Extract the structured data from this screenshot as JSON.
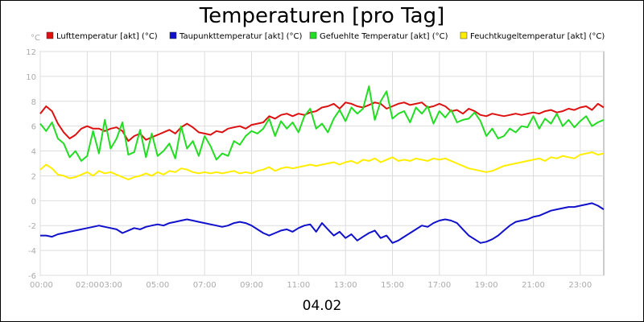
{
  "chart_data": {
    "type": "line",
    "title": "Temperaturen [pro Tag]",
    "xlabel": "04.02",
    "ylabel": "°C",
    "ylim": [
      -6,
      12
    ],
    "yticks": [
      12,
      10,
      8,
      6,
      4,
      2,
      0,
      -2,
      -4,
      -6
    ],
    "xlim": [
      0,
      24
    ],
    "xticks": [
      {
        "h": 0,
        "label": "00:00"
      },
      {
        "h": 2,
        "label": "02:00"
      },
      {
        "h": 3,
        "label": "03:00"
      },
      {
        "h": 5,
        "label": "05:00"
      },
      {
        "h": 7,
        "label": "07:00"
      },
      {
        "h": 9,
        "label": "09:00"
      },
      {
        "h": 11,
        "label": "11:00"
      },
      {
        "h": 13,
        "label": "13:00"
      },
      {
        "h": 15,
        "label": "15:00"
      },
      {
        "h": 17,
        "label": "17:00"
      },
      {
        "h": 19,
        "label": "19:00"
      },
      {
        "h": 21,
        "label": "21:00"
      },
      {
        "h": 23,
        "label": "23:00"
      }
    ],
    "grid": true,
    "legend_position": "top",
    "series": [
      {
        "name": "Lufttemperatur [akt] (°C)",
        "color": "#dd1111",
        "x": [
          0,
          0.25,
          0.5,
          0.75,
          1,
          1.25,
          1.5,
          1.75,
          2,
          2.25,
          2.5,
          2.75,
          3,
          3.25,
          3.5,
          3.75,
          4,
          4.25,
          4.5,
          4.75,
          5,
          5.25,
          5.5,
          5.75,
          6,
          6.25,
          6.5,
          6.75,
          7,
          7.25,
          7.5,
          7.75,
          8,
          8.25,
          8.5,
          8.75,
          9,
          9.25,
          9.5,
          9.75,
          10,
          10.25,
          10.5,
          10.75,
          11,
          11.25,
          11.5,
          11.75,
          12,
          12.25,
          12.5,
          12.75,
          13,
          13.25,
          13.5,
          13.75,
          14,
          14.25,
          14.5,
          14.75,
          15,
          15.25,
          15.5,
          15.75,
          16,
          16.25,
          16.5,
          16.75,
          17,
          17.25,
          17.5,
          17.75,
          18,
          18.25,
          18.5,
          18.75,
          19,
          19.25,
          19.5,
          19.75,
          20,
          20.25,
          20.5,
          20.75,
          21,
          21.25,
          21.5,
          21.75,
          22,
          22.25,
          22.5,
          22.75,
          23,
          23.25,
          23.5,
          23.75,
          24
        ],
        "values": [
          7.0,
          7.6,
          7.2,
          6.2,
          5.5,
          5.0,
          5.3,
          5.8,
          6.0,
          5.8,
          5.8,
          5.6,
          5.8,
          5.9,
          5.6,
          4.8,
          5.2,
          5.4,
          4.9,
          5.1,
          5.3,
          5.5,
          5.7,
          5.4,
          5.9,
          6.2,
          5.9,
          5.5,
          5.4,
          5.3,
          5.6,
          5.5,
          5.8,
          5.9,
          6.0,
          5.8,
          6.1,
          6.2,
          6.3,
          6.8,
          6.6,
          6.9,
          7.0,
          6.8,
          7.0,
          6.9,
          7.1,
          7.2,
          7.5,
          7.6,
          7.8,
          7.4,
          7.9,
          7.8,
          7.6,
          7.5,
          7.7,
          7.9,
          7.8,
          7.4,
          7.6,
          7.8,
          7.9,
          7.7,
          7.8,
          7.9,
          7.5,
          7.6,
          7.8,
          7.6,
          7.2,
          7.3,
          7.0,
          7.4,
          7.2,
          6.9,
          6.8,
          7.0,
          6.9,
          6.8,
          6.9,
          7.0,
          6.9,
          7.0,
          7.1,
          7.0,
          7.2,
          7.3,
          7.1,
          7.2,
          7.4,
          7.3,
          7.5,
          7.6,
          7.3,
          7.8,
          7.5
        ],
        "label": "Lufttemperatur [akt] (°C)"
      },
      {
        "name": "Taupunkttemperatur [akt] (°C)",
        "color": "#1111cc",
        "x": [
          0,
          0.25,
          0.5,
          0.75,
          1,
          1.25,
          1.5,
          1.75,
          2,
          2.25,
          2.5,
          2.75,
          3,
          3.25,
          3.5,
          3.75,
          4,
          4.25,
          4.5,
          4.75,
          5,
          5.25,
          5.5,
          5.75,
          6,
          6.25,
          6.5,
          6.75,
          7,
          7.25,
          7.5,
          7.75,
          8,
          8.25,
          8.5,
          8.75,
          9,
          9.25,
          9.5,
          9.75,
          10,
          10.25,
          10.5,
          10.75,
          11,
          11.25,
          11.5,
          11.75,
          12,
          12.25,
          12.5,
          12.75,
          13,
          13.25,
          13.5,
          13.75,
          14,
          14.25,
          14.5,
          14.75,
          15,
          15.25,
          15.5,
          15.75,
          16,
          16.25,
          16.5,
          16.75,
          17,
          17.25,
          17.5,
          17.75,
          18,
          18.25,
          18.5,
          18.75,
          19,
          19.25,
          19.5,
          19.75,
          20,
          20.25,
          20.5,
          20.75,
          21,
          21.25,
          21.5,
          21.75,
          22,
          22.25,
          22.5,
          22.75,
          23,
          23.25,
          23.5,
          23.75,
          24
        ],
        "values": [
          -2.8,
          -2.8,
          -2.9,
          -2.7,
          -2.6,
          -2.5,
          -2.4,
          -2.3,
          -2.2,
          -2.1,
          -2.0,
          -2.1,
          -2.2,
          -2.3,
          -2.6,
          -2.4,
          -2.2,
          -2.3,
          -2.1,
          -2.0,
          -1.9,
          -2.0,
          -1.8,
          -1.7,
          -1.6,
          -1.5,
          -1.6,
          -1.7,
          -1.8,
          -1.9,
          -2.0,
          -2.1,
          -2.0,
          -1.8,
          -1.7,
          -1.8,
          -2.0,
          -2.3,
          -2.6,
          -2.8,
          -2.6,
          -2.4,
          -2.3,
          -2.5,
          -2.2,
          -2.0,
          -1.9,
          -2.5,
          -1.8,
          -2.3,
          -2.8,
          -2.5,
          -3.0,
          -2.7,
          -3.2,
          -2.9,
          -2.6,
          -2.4,
          -3.0,
          -2.8,
          -3.4,
          -3.2,
          -2.9,
          -2.6,
          -2.3,
          -2.0,
          -2.1,
          -1.8,
          -1.6,
          -1.5,
          -1.6,
          -1.8,
          -2.3,
          -2.8,
          -3.1,
          -3.4,
          -3.3,
          -3.1,
          -2.8,
          -2.4,
          -2.0,
          -1.7,
          -1.6,
          -1.5,
          -1.3,
          -1.2,
          -1.0,
          -0.8,
          -0.7,
          -0.6,
          -0.5,
          -0.5,
          -0.4,
          -0.3,
          -0.2,
          -0.4,
          -0.7
        ],
        "label": "Taupunkttemperatur [akt] (°C)"
      },
      {
        "name": "Gefuehlte Temperatur [akt] (°C)",
        "color": "#22dd22",
        "x": [
          0,
          0.25,
          0.5,
          0.75,
          1,
          1.25,
          1.5,
          1.75,
          2,
          2.25,
          2.5,
          2.75,
          3,
          3.25,
          3.5,
          3.75,
          4,
          4.25,
          4.5,
          4.75,
          5,
          5.25,
          5.5,
          5.75,
          6,
          6.25,
          6.5,
          6.75,
          7,
          7.25,
          7.5,
          7.75,
          8,
          8.25,
          8.5,
          8.75,
          9,
          9.25,
          9.5,
          9.75,
          10,
          10.25,
          10.5,
          10.75,
          11,
          11.25,
          11.5,
          11.75,
          12,
          12.25,
          12.5,
          12.75,
          13,
          13.25,
          13.5,
          13.75,
          14,
          14.25,
          14.5,
          14.75,
          15,
          15.25,
          15.5,
          15.75,
          16,
          16.25,
          16.5,
          16.75,
          17,
          17.25,
          17.5,
          17.75,
          18,
          18.25,
          18.5,
          18.75,
          19,
          19.25,
          19.5,
          19.75,
          20,
          20.25,
          20.5,
          20.75,
          21,
          21.25,
          21.5,
          21.75,
          22,
          22.25,
          22.5,
          22.75,
          23,
          23.25,
          23.5,
          23.75,
          24
        ],
        "values": [
          6.2,
          5.6,
          6.3,
          5.0,
          4.6,
          3.5,
          4.0,
          3.2,
          3.6,
          5.6,
          3.8,
          6.5,
          4.2,
          5.0,
          6.3,
          3.7,
          3.9,
          5.7,
          3.5,
          5.4,
          3.6,
          4.0,
          4.6,
          3.4,
          6.0,
          4.2,
          4.8,
          3.6,
          5.2,
          4.4,
          3.3,
          3.8,
          3.6,
          4.8,
          4.5,
          5.2,
          5.6,
          5.4,
          5.8,
          6.6,
          5.2,
          6.4,
          5.8,
          6.3,
          5.5,
          6.8,
          7.4,
          5.8,
          6.2,
          5.5,
          6.6,
          7.3,
          6.4,
          7.5,
          7.0,
          7.4,
          9.2,
          6.5,
          8.0,
          8.8,
          6.6,
          7.0,
          7.2,
          6.3,
          7.5,
          7.0,
          7.6,
          6.2,
          7.2,
          6.7,
          7.3,
          6.3,
          6.5,
          6.6,
          7.1,
          6.4,
          5.2,
          5.8,
          5.0,
          5.2,
          5.8,
          5.5,
          6.0,
          5.9,
          6.8,
          5.8,
          6.6,
          6.2,
          7.0,
          6.0,
          6.5,
          5.9,
          6.4,
          6.8,
          6.0,
          6.3,
          6.5
        ],
        "label": "Gefuehlte Temperatur [akt] (°C)"
      },
      {
        "name": "Feuchtkugeltemperatur [akt] (°C)",
        "color": "#ffee00",
        "x": [
          0,
          0.25,
          0.5,
          0.75,
          1,
          1.25,
          1.5,
          1.75,
          2,
          2.25,
          2.5,
          2.75,
          3,
          3.25,
          3.5,
          3.75,
          4,
          4.25,
          4.5,
          4.75,
          5,
          5.25,
          5.5,
          5.75,
          6,
          6.25,
          6.5,
          6.75,
          7,
          7.25,
          7.5,
          7.75,
          8,
          8.25,
          8.5,
          8.75,
          9,
          9.25,
          9.5,
          9.75,
          10,
          10.25,
          10.5,
          10.75,
          11,
          11.25,
          11.5,
          11.75,
          12,
          12.25,
          12.5,
          12.75,
          13,
          13.25,
          13.5,
          13.75,
          14,
          14.25,
          14.5,
          14.75,
          15,
          15.25,
          15.5,
          15.75,
          16,
          16.25,
          16.5,
          16.75,
          17,
          17.25,
          17.5,
          17.75,
          18,
          18.25,
          18.5,
          18.75,
          19,
          19.25,
          19.5,
          19.75,
          20,
          20.25,
          20.5,
          20.75,
          21,
          21.25,
          21.5,
          21.75,
          22,
          22.25,
          22.5,
          22.75,
          23,
          23.25,
          23.5,
          23.75,
          24
        ],
        "values": [
          2.5,
          2.9,
          2.6,
          2.1,
          2.0,
          1.8,
          1.9,
          2.1,
          2.3,
          2.0,
          2.4,
          2.2,
          2.3,
          2.1,
          1.9,
          1.7,
          1.9,
          2.0,
          2.2,
          2.0,
          2.3,
          2.1,
          2.4,
          2.3,
          2.6,
          2.5,
          2.3,
          2.2,
          2.3,
          2.2,
          2.3,
          2.2,
          2.3,
          2.4,
          2.2,
          2.3,
          2.2,
          2.4,
          2.5,
          2.7,
          2.4,
          2.6,
          2.7,
          2.6,
          2.7,
          2.8,
          2.9,
          2.8,
          2.9,
          3.0,
          3.1,
          2.9,
          3.1,
          3.2,
          3.0,
          3.3,
          3.2,
          3.4,
          3.1,
          3.3,
          3.5,
          3.2,
          3.3,
          3.2,
          3.4,
          3.3,
          3.2,
          3.4,
          3.3,
          3.4,
          3.2,
          3.0,
          2.8,
          2.6,
          2.5,
          2.4,
          2.3,
          2.4,
          2.6,
          2.8,
          2.9,
          3.0,
          3.1,
          3.2,
          3.3,
          3.4,
          3.2,
          3.5,
          3.4,
          3.6,
          3.5,
          3.4,
          3.7,
          3.8,
          3.9,
          3.7,
          3.8
        ],
        "label": "Feuchtkugeltemperatur [akt] (°C)"
      }
    ]
  }
}
